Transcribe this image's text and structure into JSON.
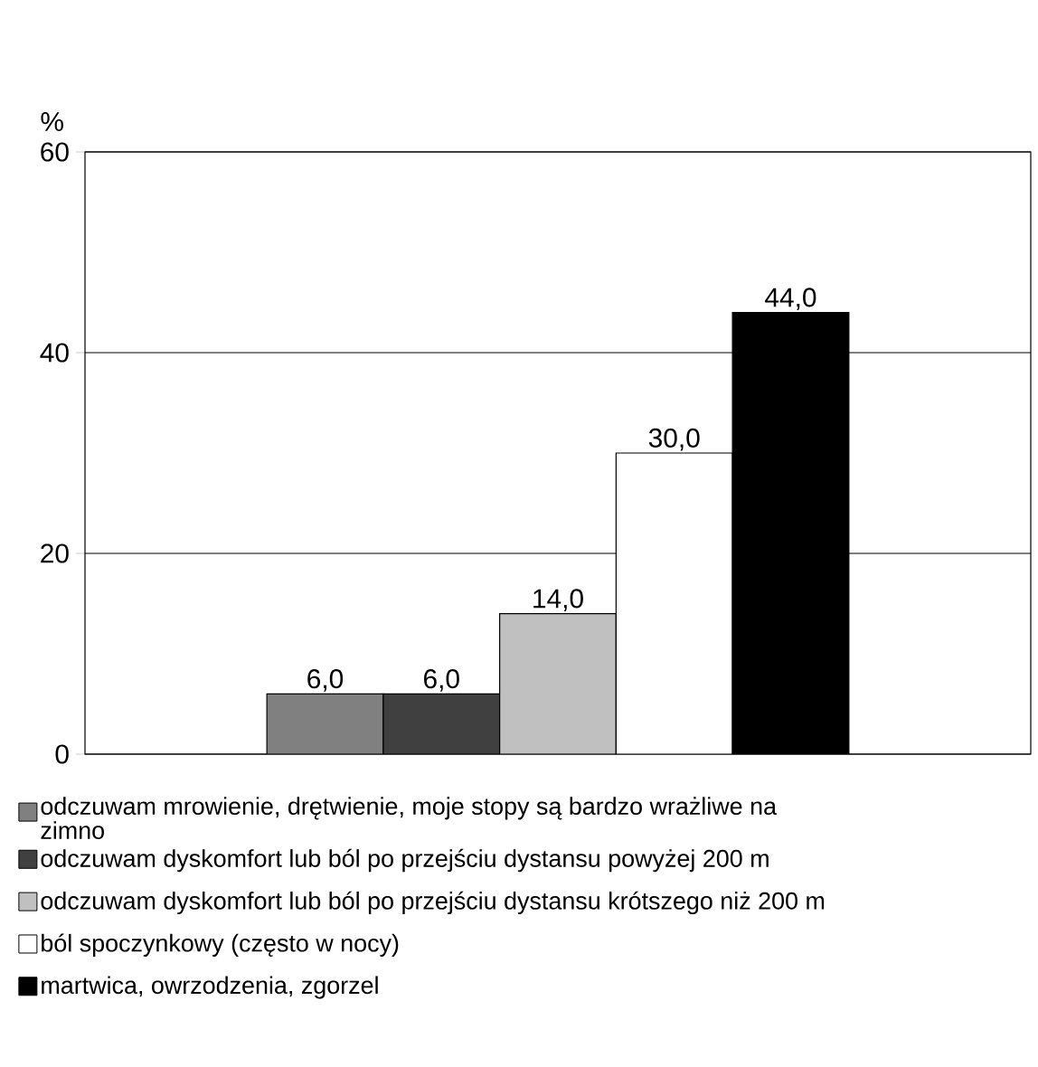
{
  "chart_data": {
    "type": "bar",
    "ylabel": "%",
    "categories": [
      null
    ],
    "ylim": [
      0,
      60
    ],
    "yticks": [
      0,
      20,
      40,
      60
    ],
    "grid": "y",
    "legend": "bottom",
    "series": [
      {
        "name": "odczuwam mrowienie, drętwienie, moje stopy są bardzo wrażliwe na zimno",
        "color": "#808080",
        "values": [
          6.0
        ],
        "value_labels": [
          "6,0"
        ]
      },
      {
        "name": "odczuwam dyskomfort lub ból po przejściu dystansu powyżej 200 m",
        "color": "#404040",
        "values": [
          6.0
        ],
        "value_labels": [
          "6,0"
        ]
      },
      {
        "name": "odczuwam dyskomfort lub ból po przejściu dystansu krótszego niż 200 m",
        "color": "#c0c0c0",
        "values": [
          14.0
        ],
        "value_labels": [
          "14,0"
        ]
      },
      {
        "name": "ból spoczynkowy (często w nocy)",
        "color": "#ffffff",
        "values": [
          30.0
        ],
        "value_labels": [
          "30,0"
        ]
      },
      {
        "name": "martwica, owrzodzenia, zgorzel",
        "color": "#000000",
        "values": [
          44.0
        ],
        "value_labels": [
          "44,0"
        ]
      }
    ]
  }
}
